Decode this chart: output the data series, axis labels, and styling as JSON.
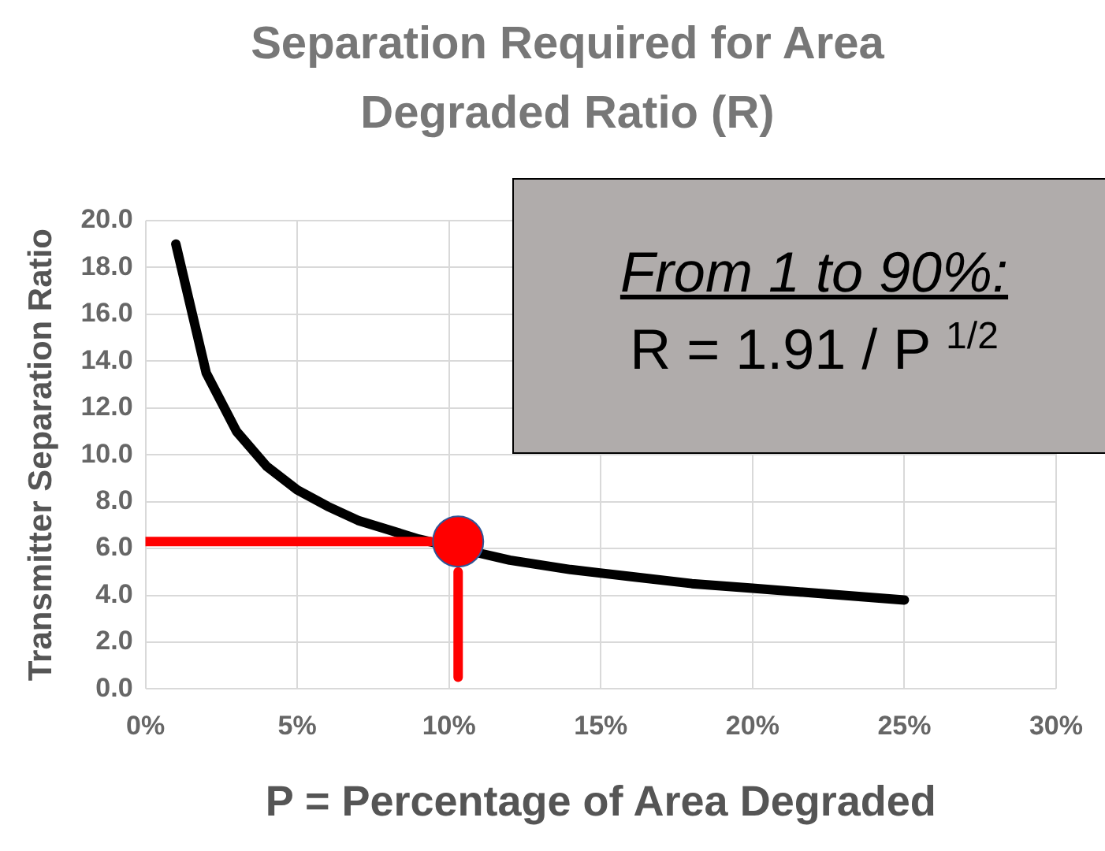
{
  "chart_data": {
    "type": "line",
    "title": "Separation Required for Area Degraded Ratio (R)",
    "xlabel": "P = Percentage of Area Degraded",
    "ylabel": "Transmitter Separation Ratio",
    "series": [
      {
        "color": "#000000",
        "x": [
          1,
          2,
          3,
          4,
          5,
          6,
          7,
          8,
          9,
          11,
          12,
          14,
          16,
          18,
          20,
          22,
          24,
          25
        ],
        "values": [
          19.0,
          13.5,
          11.0,
          9.5,
          8.5,
          7.8,
          7.2,
          6.8,
          6.4,
          5.8,
          5.5,
          5.1,
          4.8,
          4.5,
          4.3,
          4.1,
          3.9,
          3.8
        ]
      },
      {
        "color": "#ff0000",
        "x": [
          0,
          9.4
        ],
        "values": [
          6.3,
          6.3
        ]
      },
      {
        "color": "#ff0000",
        "x": [
          10.3,
          10.3
        ],
        "values": [
          0.5,
          5.0
        ]
      },
      {
        "type": "scatter",
        "color": "#ff0000",
        "marker": "circle",
        "x": [
          10.3
        ],
        "values": [
          6.3
        ]
      }
    ],
    "xlim": [
      0,
      30
    ],
    "xticks": [
      {
        "value": 0,
        "label": "0%"
      },
      {
        "value": 5,
        "label": "5%"
      },
      {
        "value": 10,
        "label": "10%"
      },
      {
        "value": 15,
        "label": "15%"
      },
      {
        "value": 20,
        "label": "20%"
      },
      {
        "value": 25,
        "label": "25%"
      },
      {
        "value": 30,
        "label": "30%"
      }
    ],
    "ylim": [
      0,
      20
    ],
    "yticks": [
      {
        "value": 0,
        "label": "0.0"
      },
      {
        "value": 2,
        "label": "2.0"
      },
      {
        "value": 4,
        "label": "4.0"
      },
      {
        "value": 6,
        "label": "6.0"
      },
      {
        "value": 8,
        "label": "8.0"
      },
      {
        "value": 10,
        "label": "10.0"
      },
      {
        "value": 12,
        "label": "12.0"
      },
      {
        "value": 14,
        "label": "14.0"
      },
      {
        "value": 16,
        "label": "16.0"
      },
      {
        "value": 18,
        "label": "18.0"
      },
      {
        "value": 20,
        "label": "20.0"
      }
    ],
    "grid": true,
    "legend": false,
    "marker": "none",
    "line_style": "solid",
    "annotations": [
      "From 1 to 90%:",
      "R = 1.91 / P $^{1/2}$"
    ]
  }
}
